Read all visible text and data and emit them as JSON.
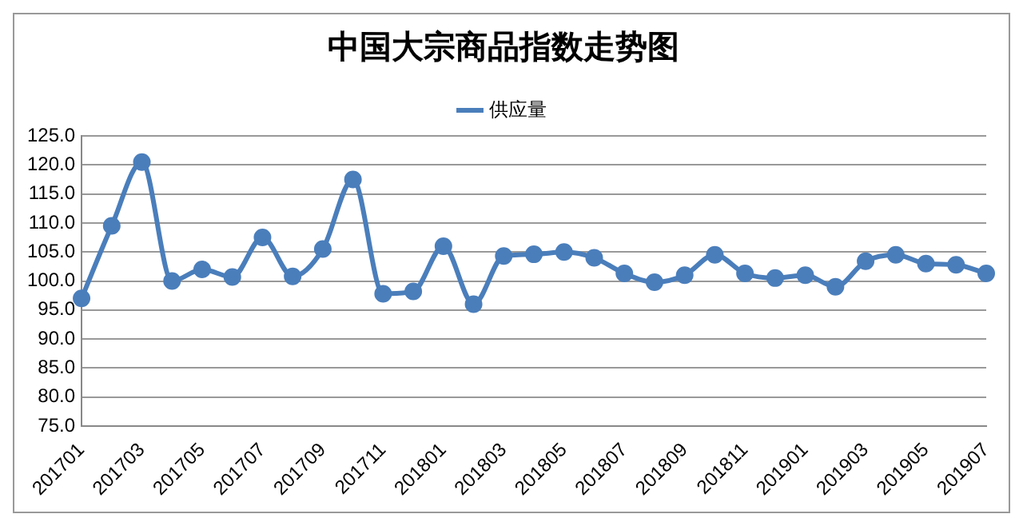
{
  "chart_data": {
    "type": "line",
    "title": "中国大宗商品指数走势图",
    "categories": [
      "201701",
      null,
      "201703",
      null,
      "201705",
      null,
      "201707",
      null,
      "201709",
      null,
      "201711",
      null,
      "201801",
      null,
      "201803",
      null,
      "201805",
      null,
      "201807",
      null,
      "201809",
      null,
      "201811",
      null,
      "201901",
      null,
      "201903",
      null,
      "201905",
      null,
      "201907"
    ],
    "series": [
      {
        "name": "供应量",
        "color": "#4a7ebb",
        "values": [
          97,
          109.5,
          120.5,
          100,
          102,
          100.7,
          107.5,
          100.8,
          105.5,
          117.5,
          97.8,
          98.2,
          106,
          96,
          104.3,
          104.6,
          105,
          104,
          101.3,
          99.8,
          101,
          104.5,
          101.3,
          100.5,
          101,
          99,
          103.4,
          104.5,
          103,
          102.8,
          101.3
        ]
      }
    ],
    "ylim": [
      75,
      125
    ],
    "yticks": [
      {
        "value": 75,
        "label": "75.0"
      },
      {
        "value": 80,
        "label": "80.0"
      },
      {
        "value": 85,
        "label": "85.0"
      },
      {
        "value": 90,
        "label": "90.0"
      },
      {
        "value": 95,
        "label": "95.0"
      },
      {
        "value": 100,
        "label": "100.0"
      },
      {
        "value": 105,
        "label": "105.0"
      },
      {
        "value": 110,
        "label": "110.0"
      },
      {
        "value": 115,
        "label": "115.0"
      },
      {
        "value": 120,
        "label": "120.0"
      },
      {
        "value": 125,
        "label": "125.0"
      }
    ],
    "grid": "y",
    "legend": "top",
    "marker": "circle",
    "line_style": "solid"
  }
}
